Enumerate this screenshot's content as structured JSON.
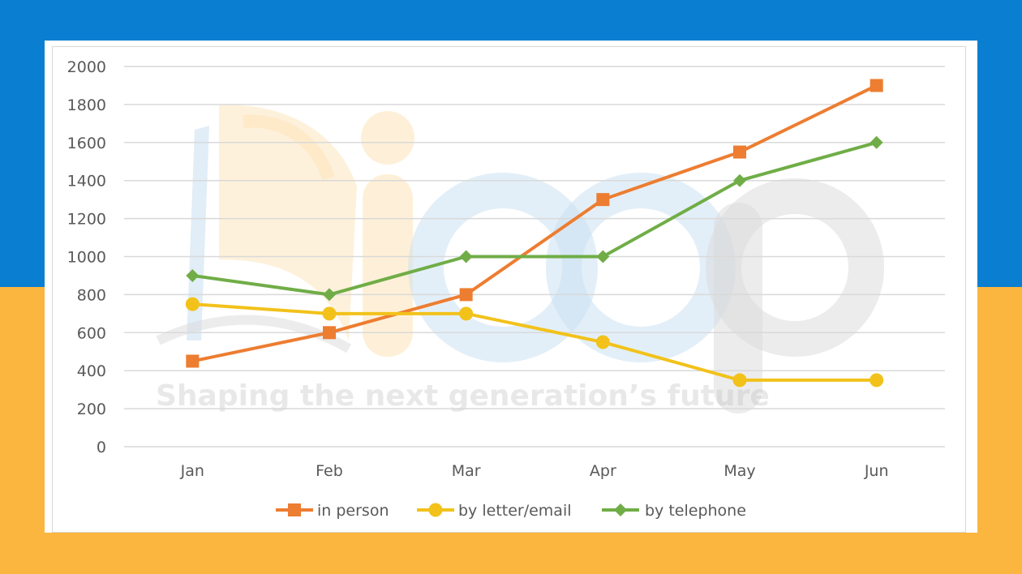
{
  "colors": {
    "bg_top": "#0a7fd1",
    "bg_bottom": "#fbb63f",
    "grid": "#d9d9d9",
    "in_person": "#ed7d31",
    "letter_email": "#f2c21b",
    "telephone": "#70ad47"
  },
  "watermark": {
    "logo_text": "ieep",
    "tagline": "Shaping the next generation’s future"
  },
  "chart_data": {
    "type": "line",
    "title": "",
    "xlabel": "",
    "ylabel": "",
    "categories": [
      "Jan",
      "Feb",
      "Mar",
      "Apr",
      "May",
      "Jun"
    ],
    "ylim": [
      0,
      2000
    ],
    "yticks": [
      0,
      200,
      400,
      600,
      800,
      1000,
      1200,
      1400,
      1600,
      1800,
      2000
    ],
    "grid": true,
    "legend_position": "bottom",
    "series": [
      {
        "name": "in person",
        "marker": "square",
        "values": [
          450,
          600,
          800,
          1300,
          1550,
          1900
        ]
      },
      {
        "name": "by letter/email",
        "marker": "circle",
        "values": [
          750,
          700,
          700,
          550,
          350,
          350
        ]
      },
      {
        "name": "by telephone",
        "marker": "diamond",
        "values": [
          900,
          800,
          1000,
          1000,
          1400,
          1600
        ]
      }
    ]
  }
}
